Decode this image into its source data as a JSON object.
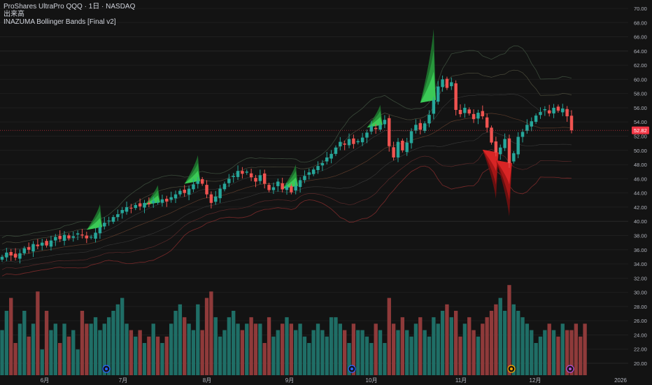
{
  "legend": {
    "symbol": "ProShares UltraPro QQQ · 1日 · NASDAQ",
    "volume": "出来高",
    "indicator": "INAZUMA Bollinger Bands [Final v2]"
  },
  "price_badge": "52.82",
  "colors": {
    "background": "#131313",
    "up": "#26a69a",
    "down": "#ef5350",
    "vol_up": "#1f6e66",
    "vol_down": "#8f3a3a",
    "band": "#4a4a4a",
    "lower_band": "#7a2a2a",
    "badge": "#f23645",
    "green_fill": "#2ecc40",
    "red_fill": "#e02020"
  },
  "chart_data": {
    "type": "candlestick",
    "y_axis": {
      "min": 20,
      "max": 70,
      "ticks": [
        "70.00",
        "68.00",
        "66.00",
        "64.00",
        "62.00",
        "60.00",
        "58.00",
        "56.00",
        "54.00",
        "52.00",
        "50.00",
        "48.00",
        "46.00",
        "44.00",
        "42.00",
        "40.00",
        "38.00",
        "36.00",
        "34.00",
        "32.00",
        "30.00",
        "28.00",
        "26.00",
        "24.00",
        "22.00",
        "20.00"
      ]
    },
    "x_axis": {
      "ticks": [
        "6月",
        "7月",
        "8月",
        "9月",
        "10月",
        "11月",
        "12月",
        "2026"
      ]
    },
    "close_series": [
      35.0,
      35.6,
      35.2,
      34.9,
      35.5,
      36.2,
      36.0,
      36.8,
      36.5,
      37.0,
      36.6,
      37.3,
      37.8,
      37.5,
      38.1,
      37.6,
      37.9,
      38.3,
      38.0,
      37.6,
      37.8,
      38.4,
      39.2,
      39.8,
      40.1,
      40.6,
      41.0,
      41.6,
      42.0,
      41.8,
      42.3,
      42.1,
      42.6,
      42.4,
      42.9,
      42.7,
      43.1,
      42.8,
      43.4,
      43.8,
      44.3,
      44.0,
      44.6,
      45.2,
      45.7,
      45.3,
      43.8,
      42.6,
      43.5,
      44.6,
      45.3,
      46.0,
      46.4,
      47.1,
      46.7,
      47.0,
      46.2,
      45.6,
      46.5,
      45.3,
      44.4,
      44.8,
      45.6,
      44.5,
      44.9,
      44.1,
      45.0,
      45.8,
      46.4,
      46.9,
      47.3,
      47.8,
      48.2,
      49.0,
      49.5,
      50.4,
      51.2,
      50.8,
      51.6,
      50.9,
      51.3,
      51.8,
      52.5,
      53.4,
      53.0,
      53.6,
      54.3,
      50.6,
      49.0,
      51.2,
      50.0,
      51.1,
      52.7,
      53.6,
      52.9,
      53.8,
      55.0,
      57.1,
      59.0,
      60.0,
      58.8,
      59.6,
      55.7,
      55.1,
      56.0,
      55.2,
      54.4,
      55.3,
      54.8,
      53.2,
      51.1,
      49.7,
      50.4,
      51.6,
      48.2,
      49.6,
      51.9,
      52.6,
      53.6,
      54.1,
      54.9,
      55.4,
      55.8,
      55.2,
      56.0,
      55.6,
      55.9,
      54.8,
      52.82
    ],
    "volume": {
      "range": [
        0,
        32
      ],
      "values": [
        24,
        27,
        29,
        22,
        25,
        27,
        23,
        25,
        30,
        21,
        27,
        24,
        25,
        22,
        25,
        23,
        24,
        21,
        27,
        25,
        25,
        26,
        24,
        25,
        26,
        27,
        28,
        29,
        25,
        24,
        23,
        24,
        22,
        23,
        25,
        23,
        22,
        23,
        25,
        27,
        28,
        26,
        25,
        24,
        28,
        24,
        29,
        30,
        26,
        23,
        24,
        26,
        27,
        25,
        24,
        25,
        26,
        25,
        25,
        22,
        26,
        23,
        24,
        25,
        26,
        25,
        24,
        25,
        23,
        22,
        24,
        25,
        24,
        23,
        26,
        26,
        25,
        24,
        22,
        25,
        24,
        24,
        23,
        22,
        25,
        24,
        22,
        29,
        25,
        24,
        26,
        24,
        23,
        25,
        26,
        24,
        23,
        26,
        25,
        27,
        28,
        26,
        27,
        23,
        25,
        26,
        24,
        23,
        25,
        26,
        27,
        28,
        29,
        27,
        31,
        28,
        27,
        26,
        25,
        24,
        22,
        23,
        24,
        25,
        24,
        23,
        25,
        24,
        24,
        25,
        23,
        25
      ]
    },
    "last_price": 52.82
  }
}
